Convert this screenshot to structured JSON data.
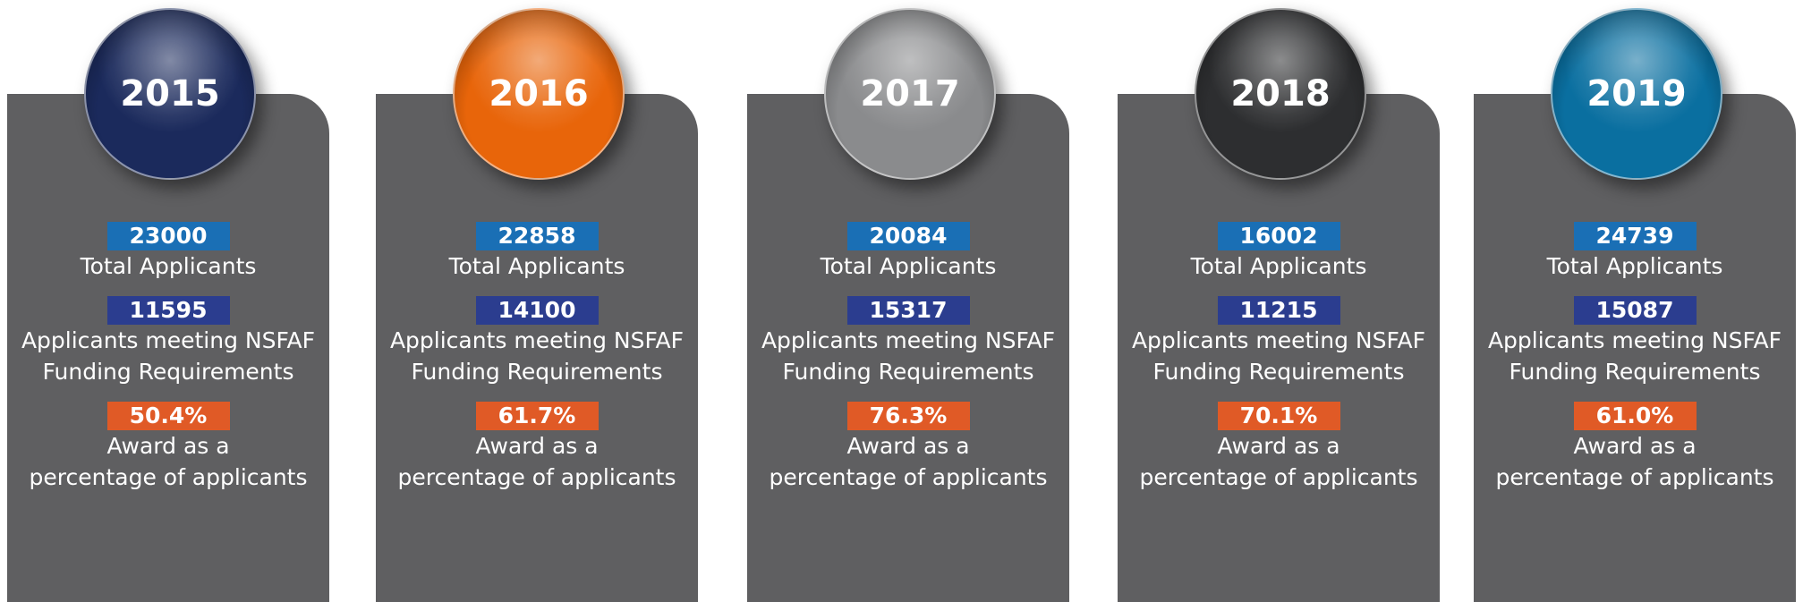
{
  "cards": [
    {
      "year": "2015",
      "color": "#1b2a5c",
      "stats": [
        {
          "value": "23000",
          "label": [
            "Total Applicants"
          ]
        },
        {
          "value": "11595",
          "label": [
            "Applicants meeting NSFAF",
            "Funding Requirements"
          ]
        },
        {
          "value": "50.4%",
          "label": [
            "Award as a",
            "percentage of applicants"
          ]
        }
      ]
    },
    {
      "year": "2016",
      "color": "#e8650a",
      "stats": [
        {
          "value": "22858",
          "label": [
            "Total Applicants"
          ]
        },
        {
          "value": "14100",
          "label": [
            "Applicants meeting NSFAF",
            "Funding Requirements"
          ]
        },
        {
          "value": "61.7%",
          "label": [
            "Award as a",
            "percentage of applicants"
          ]
        }
      ]
    },
    {
      "year": "2017",
      "color": "#8a8b8d",
      "stats": [
        {
          "value": "20084",
          "label": [
            "Total Applicants"
          ]
        },
        {
          "value": "15317",
          "label": [
            "Applicants meeting NSFAF",
            "Funding Requirements"
          ]
        },
        {
          "value": "76.3%",
          "label": [
            "Award as a",
            "percentage of applicants"
          ]
        }
      ]
    },
    {
      "year": "2018",
      "color": "#2d2e30",
      "stats": [
        {
          "value": "16002",
          "label": [
            "Total Applicants"
          ]
        },
        {
          "value": "11215",
          "label": [
            "Applicants meeting NSFAF",
            "Funding Requirements"
          ]
        },
        {
          "value": "70.1%",
          "label": [
            "Award as a",
            "percentage of applicants"
          ]
        }
      ]
    },
    {
      "year": "2019",
      "color": "#0a6fa0",
      "stats": [
        {
          "value": "24739",
          "label": [
            "Total Applicants"
          ]
        },
        {
          "value": "15087",
          "label": [
            "Applicants meeting NSFAF",
            "Funding Requirements"
          ]
        },
        {
          "value": "61.0%",
          "label": [
            "Award as a",
            "percentage of applicants"
          ]
        }
      ]
    }
  ]
}
